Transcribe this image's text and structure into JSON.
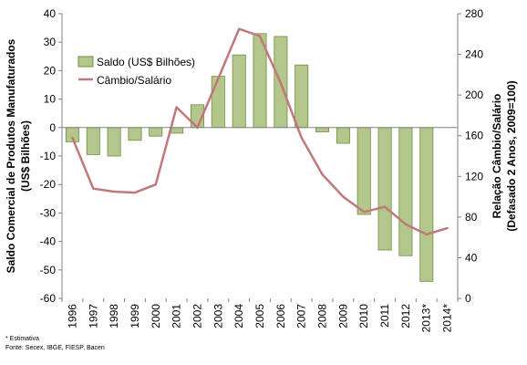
{
  "chart_data": {
    "type": "bar",
    "categories": [
      "1996",
      "1997",
      "1998",
      "1999",
      "2000",
      "2001",
      "2002",
      "2003",
      "2004",
      "2005",
      "2006",
      "2007",
      "2008",
      "2009",
      "2010",
      "2011",
      "2012",
      "2013*",
      "2014*"
    ],
    "series": [
      {
        "name": "Saldo (US$ Bilhões)",
        "type": "bar",
        "axis": "left",
        "color": "#b3c78d",
        "border": "#6f8f3a",
        "values": [
          -5,
          -9.5,
          -10,
          -4.5,
          -3,
          -2,
          8,
          18,
          25.5,
          33,
          32,
          22,
          -1.5,
          -5.5,
          -30.5,
          -43,
          -45,
          -54,
          null
        ]
      },
      {
        "name": "Câmbio/Salário",
        "type": "line",
        "axis": "right",
        "color": "#c0787a",
        "values": [
          158,
          108,
          105,
          104,
          112,
          188,
          168,
          216,
          265,
          258,
          212,
          158,
          122,
          100,
          85,
          90,
          73,
          63,
          69
        ]
      }
    ],
    "ylabel_left": "Saldo Comercial de Produtos Manufaturados\n(US$ Bilhões)",
    "ylabel_right": "Relação Câmbio/Salário\n(Defasado 2 Anos, 2009=100)",
    "ylim_left": [
      -60,
      40
    ],
    "yticks_left": [
      -60,
      -50,
      -40,
      -30,
      -20,
      -10,
      0,
      10,
      20,
      30,
      40
    ],
    "ylim_right": [
      0,
      280
    ],
    "yticks_right": [
      0,
      40,
      80,
      120,
      160,
      200,
      240,
      280
    ],
    "legend_position": "top-left",
    "grid": false
  },
  "footnotes": {
    "line1": "* Estimativa",
    "line2": "Fonte: Secex, IBGE, FIESP, Bacen"
  }
}
